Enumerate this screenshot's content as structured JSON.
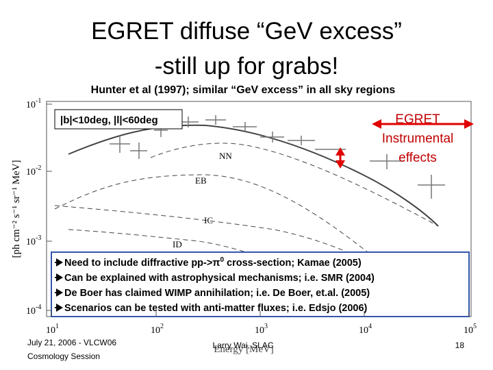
{
  "header": {
    "title": [
      "EGRET diffuse “GeV excess”",
      "-still up for grabs!"
    ],
    "subtitle": "Hunter et al (1997); similar “GeV excess” in all sky regions"
  },
  "plot": {
    "region": "|b|<10deg, |l|<60deg",
    "annotation": [
      "EGRET",
      "Instrumental",
      "effects"
    ],
    "curve_labels": [
      "NN",
      "EB",
      "IC",
      "ID"
    ],
    "y_axis_label": "[ph cm⁻² s⁻¹ sr⁻¹ MeV]",
    "x_axis_label": "Energy [MeV]",
    "y_ticks": [
      {
        "base": "10",
        "exp": "-1"
      },
      {
        "base": "10",
        "exp": "-2"
      },
      {
        "base": "10",
        "exp": "-3"
      },
      {
        "base": "10",
        "exp": "-4"
      }
    ],
    "x_ticks": [
      {
        "base": "10",
        "exp": "1"
      },
      {
        "base": "10",
        "exp": "2"
      },
      {
        "base": "10",
        "exp": "3"
      },
      {
        "base": "10",
        "exp": "4"
      },
      {
        "base": "10",
        "exp": "5"
      }
    ]
  },
  "bullets": [
    [
      "Need to include diffractive pp->",
      "π",
      "0",
      " cross-section; Kamae (2005)"
    ],
    [
      "Can be explained with astrophysical mechanisms; i.e. SMR (2004)"
    ],
    [
      "De Boer has claimed WIMP annihilation; i.e. De Boer, et.al. (2005)"
    ],
    [
      "Scenarios can be tested with anti-matter fluxes; i.e. Edsjo (2006)"
    ]
  ],
  "footer": {
    "left": [
      "July 21, 2006 - VLCW06",
      "Cosmology Session"
    ],
    "center": "Larry Wai, SLAC",
    "page": "18"
  }
}
